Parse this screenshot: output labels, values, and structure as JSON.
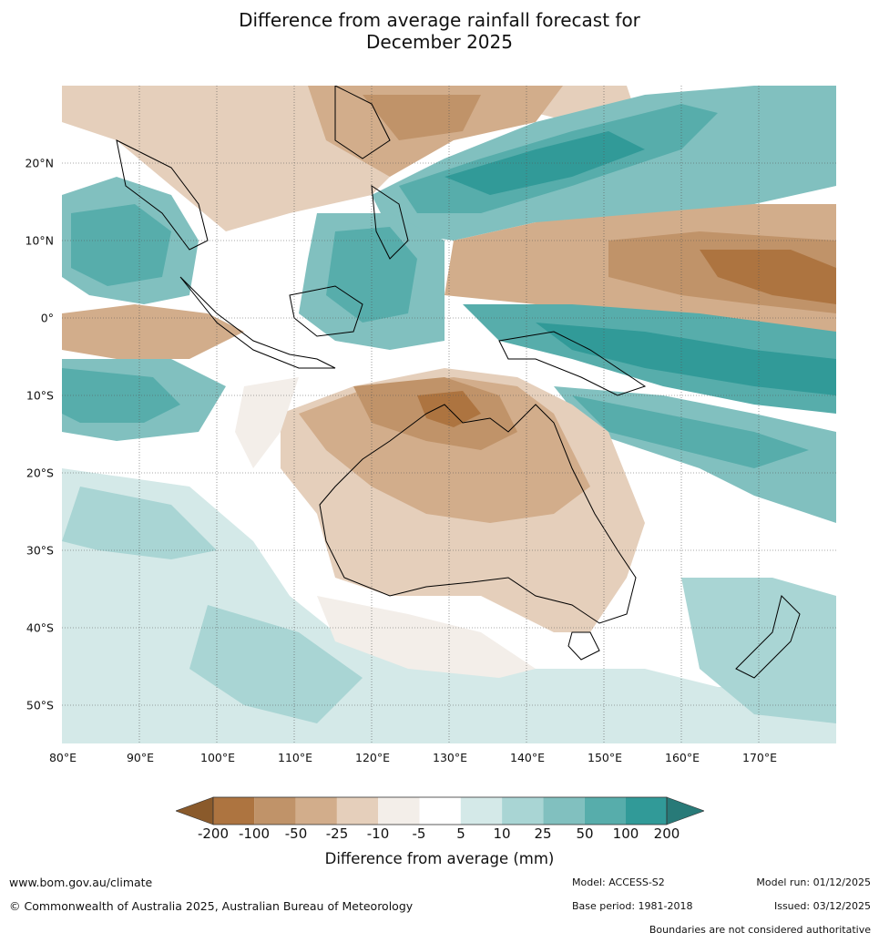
{
  "title_line1": "Difference from average rainfall forecast for",
  "title_line2": "December 2025",
  "map": {
    "name": "Australasian region rainfall anomaly map",
    "latitude_labels": [
      "20°N",
      "10°N",
      "0°",
      "10°S",
      "20°S",
      "30°S",
      "40°S",
      "50°S"
    ],
    "longitude_labels": [
      "80°E",
      "90°E",
      "100°E",
      "110°E",
      "120°E",
      "130°E",
      "140°E",
      "150°E",
      "160°E",
      "170°E"
    ],
    "lon_range": [
      80,
      180
    ],
    "lat_range": [
      -55,
      30
    ]
  },
  "legend": {
    "title": "Difference from average (mm)",
    "ticks": [
      "-200",
      "-100",
      "-50",
      "-25",
      "-10",
      "-5",
      "5",
      "10",
      "25",
      "50",
      "100",
      "200"
    ],
    "colors": [
      "#8a5a2b",
      "#ad7440",
      "#c09369",
      "#d2ad8b",
      "#e5cfbb",
      "#f3eee9",
      "#ffffff",
      "#d4e9e8",
      "#a9d5d4",
      "#81c0bf",
      "#57adab",
      "#319a98",
      "#287a78"
    ]
  },
  "footer": {
    "website": "www.bom.gov.au/climate",
    "copyright": "© Commonwealth of Australia 2025, Australian Bureau of Meteorology",
    "model": "Model: ACCESS-S2",
    "base_period": "Base period: 1981-2018",
    "model_run": "Model run: 01/12/2025",
    "issued": "Issued: 03/12/2025",
    "disclaimer": "Boundaries are not considered authoritative"
  }
}
